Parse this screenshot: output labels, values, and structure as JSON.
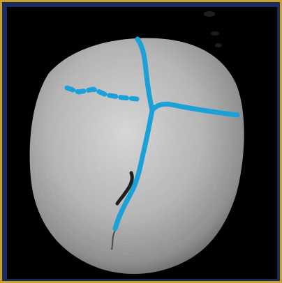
{
  "viewer": {
    "image_subject": "skull-3d-render",
    "overlay_text": "",
    "colors": {
      "frame_border": "#c9a227",
      "frame_background": "#1b2a63",
      "viewport_background": "#000000",
      "annotation": "#1ba0d8"
    }
  },
  "annotations": [
    {
      "name": "sagittal-suture",
      "style": "solid"
    },
    {
      "name": "metopic-suture",
      "style": "solid"
    },
    {
      "name": "right-coronal-suture",
      "style": "solid"
    },
    {
      "name": "left-coronal-suture",
      "style": "dotted"
    }
  ]
}
